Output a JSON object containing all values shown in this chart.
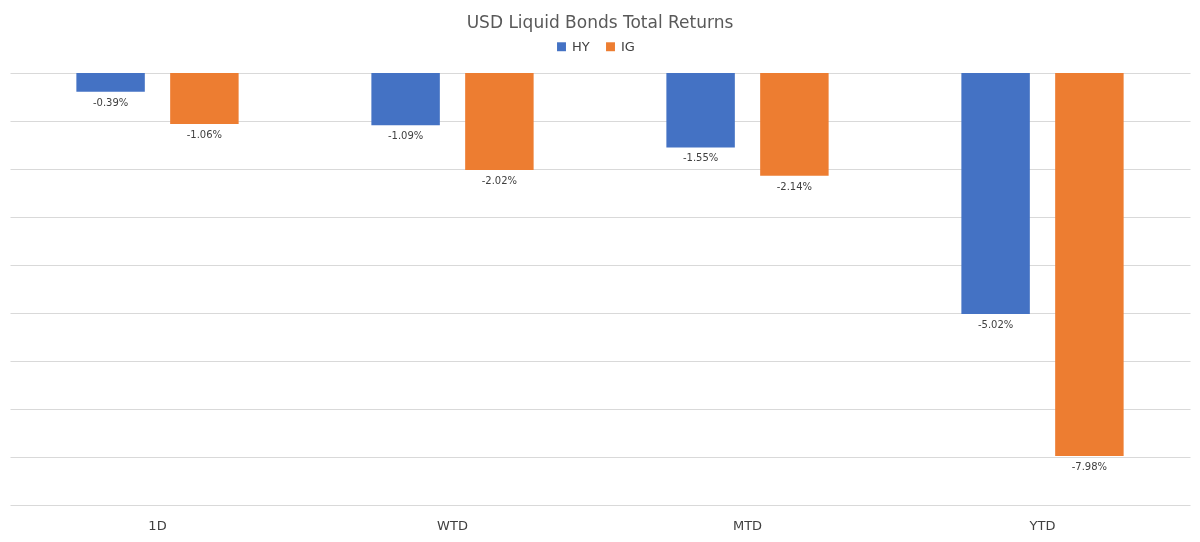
{
  "chart_data": {
    "type": "bar",
    "title": "USD Liquid Bonds Total Returns",
    "categories": [
      "1D",
      "WTD",
      "MTD",
      "YTD"
    ],
    "series": [
      {
        "name": "HY",
        "color": "#4472c4",
        "values": [
          -0.39,
          -1.09,
          -1.55,
          -5.02
        ],
        "value_labels": [
          "-0.39%",
          "-1.09%",
          "-1.55%",
          "-5.02%"
        ]
      },
      {
        "name": "IG",
        "color": "#ed7d31",
        "values": [
          -1.06,
          -2.02,
          -2.14,
          -7.98
        ],
        "value_labels": [
          "-1.06%",
          "-2.02%",
          "-2.14%",
          "-7.98%"
        ]
      }
    ],
    "ylim": [
      -9,
      0
    ],
    "yticks": [
      {
        "value": 0,
        "label": null
      },
      {
        "value": -1,
        "label": null
      },
      {
        "value": -2,
        "label": null
      },
      {
        "value": -3,
        "label": null
      },
      {
        "value": -4,
        "label": null
      },
      {
        "value": -5,
        "label": null
      },
      {
        "value": -6,
        "label": null
      },
      {
        "value": -7,
        "label": null
      },
      {
        "value": -8,
        "label": null
      },
      {
        "value": -9,
        "label": null
      }
    ],
    "grid": "y",
    "legend": "top",
    "tick_labels": "x"
  }
}
